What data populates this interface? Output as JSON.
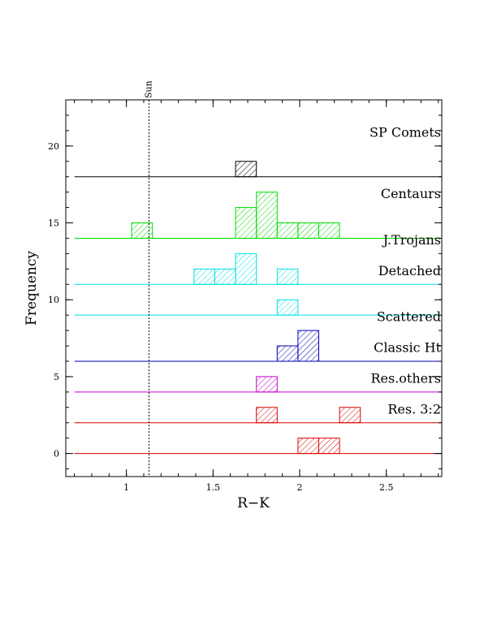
{
  "chart_data": {
    "type": "bar",
    "xlabel": "R−K",
    "ylabel": "Frequency",
    "xlim": [
      0.65,
      2.82
    ],
    "ylim": [
      -1.5,
      23
    ],
    "x_ticks": [
      {
        "value": 1,
        "label": "1"
      },
      {
        "value": 1.5,
        "label": "1.5"
      },
      {
        "value": 2,
        "label": "2"
      },
      {
        "value": 2.5,
        "label": "2.5"
      }
    ],
    "y_ticks": [
      {
        "value": 0,
        "label": "0"
      },
      {
        "value": 5,
        "label": "5"
      },
      {
        "value": 10,
        "label": "10"
      },
      {
        "value": 15,
        "label": "15"
      },
      {
        "value": 20,
        "label": "20"
      }
    ],
    "reference_line": {
      "x": 1.13,
      "label": "Sun"
    },
    "bin_width": 0.12,
    "baseline_start": 0.7,
    "series": [
      {
        "name": "SP Comets",
        "color": "#000000",
        "offset": 18,
        "bins": [
          {
            "x": 1.63,
            "count": 1
          }
        ]
      },
      {
        "name": "Centaurs",
        "color": "#00dd00",
        "offset": 14,
        "bins": [
          {
            "x": 1.03,
            "count": 1
          },
          {
            "x": 1.63,
            "count": 2
          },
          {
            "x": 1.75,
            "count": 3
          },
          {
            "x": 1.87,
            "count": 1
          },
          {
            "x": 1.99,
            "count": 1
          },
          {
            "x": 2.11,
            "count": 1
          }
        ]
      },
      {
        "name": "J.Trojans",
        "color": "#00e0e0",
        "offset": 11,
        "bins": [
          {
            "x": 1.39,
            "count": 1
          },
          {
            "x": 1.51,
            "count": 1
          },
          {
            "x": 1.63,
            "count": 2
          },
          {
            "x": 1.87,
            "count": 1
          }
        ]
      },
      {
        "name": "Detached",
        "color": "#00e0e0",
        "offset": 9,
        "bins": [
          {
            "x": 1.87,
            "count": 1
          }
        ]
      },
      {
        "name": "Scattered",
        "color": "#0000bb",
        "offset": 6,
        "bins": [
          {
            "x": 1.87,
            "count": 1
          },
          {
            "x": 1.99,
            "count": 2
          }
        ]
      },
      {
        "name": "Classic Ht",
        "color": "#cc00cc",
        "offset": 4,
        "bins": [
          {
            "x": 1.75,
            "count": 1
          }
        ]
      },
      {
        "name": "Res.others",
        "color": "#dd0000",
        "offset": 2,
        "bins": [
          {
            "x": 1.75,
            "count": 1
          },
          {
            "x": 2.23,
            "count": 1
          }
        ]
      },
      {
        "name": "Res. 3:2",
        "color": "#dd0000",
        "offset": 0,
        "bins": [
          {
            "x": 1.99,
            "count": 1
          },
          {
            "x": 2.11,
            "count": 1
          }
        ]
      }
    ]
  }
}
